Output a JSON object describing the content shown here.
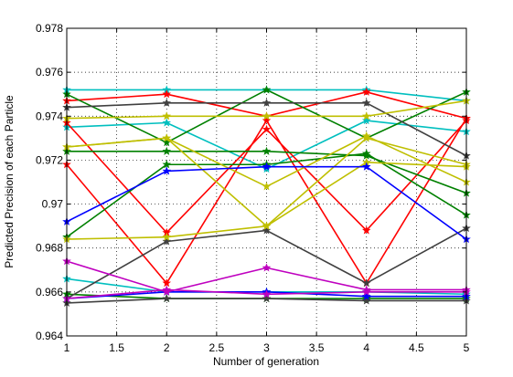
{
  "chart_data": {
    "type": "line",
    "title": "",
    "xlabel": "Number of generation",
    "ylabel": "Predicted Precision of each Particle",
    "xlim": [
      1,
      5
    ],
    "ylim": [
      0.964,
      0.978
    ],
    "xticks": [
      "1",
      "1.5",
      "2",
      "2.5",
      "3",
      "3.5",
      "4",
      "4.5",
      "5"
    ],
    "yticks": [
      "0.964",
      "0.966",
      "0.968",
      "0.97",
      "0.972",
      "0.974",
      "0.976",
      "0.978"
    ],
    "xtick_values": [
      1,
      1.5,
      2,
      2.5,
      3,
      3.5,
      4,
      4.5,
      5
    ],
    "ytick_values": [
      0.964,
      0.966,
      0.968,
      0.97,
      0.972,
      0.974,
      0.976,
      0.978
    ],
    "grid": true,
    "x": [
      1,
      2,
      3,
      4,
      5
    ],
    "series": [
      {
        "color": "#00bfbf",
        "values": [
          0.9752,
          0.9752,
          0.9752,
          0.9752,
          0.9747
        ]
      },
      {
        "color": "#00bfbf",
        "values": [
          0.9735,
          0.9737,
          0.9716,
          0.9738,
          0.9733
        ]
      },
      {
        "color": "#00bfbf",
        "values": [
          0.9666,
          0.966,
          0.966,
          0.966,
          0.9659
        ]
      },
      {
        "color": "#ff0000",
        "values": [
          0.9747,
          0.975,
          0.974,
          0.9751,
          0.9739
        ]
      },
      {
        "color": "#ff0000",
        "values": [
          0.9718,
          0.9664,
          0.9738,
          0.9664,
          0.9739
        ]
      },
      {
        "color": "#ff0000",
        "values": [
          0.9737,
          0.9687,
          0.9734,
          0.9688,
          0.9738
        ]
      },
      {
        "color": "#008000",
        "values": [
          0.975,
          0.9728,
          0.9752,
          0.973,
          0.9751
        ]
      },
      {
        "color": "#008000",
        "values": [
          0.9685,
          0.9718,
          0.9718,
          0.9723,
          0.9695
        ]
      },
      {
        "color": "#008000",
        "values": [
          0.9724,
          0.9724,
          0.9724,
          0.9722,
          0.9705
        ]
      },
      {
        "color": "#008000",
        "values": [
          0.9659,
          0.9657,
          0.9657,
          0.9657,
          0.9657
        ]
      },
      {
        "color": "#404040",
        "values": [
          0.9744,
          0.9746,
          0.9746,
          0.9746,
          0.9722
        ]
      },
      {
        "color": "#404040",
        "values": [
          0.9657,
          0.9683,
          0.9688,
          0.9664,
          0.9689
        ]
      },
      {
        "color": "#404040",
        "values": [
          0.9655,
          0.9657,
          0.9657,
          0.9656,
          0.9656
        ]
      },
      {
        "color": "#bfbf00",
        "values": [
          0.9739,
          0.974,
          0.974,
          0.974,
          0.9747
        ]
      },
      {
        "color": "#bfbf00",
        "values": [
          0.9726,
          0.973,
          0.9708,
          0.9731,
          0.971
        ]
      },
      {
        "color": "#bfbf00",
        "values": [
          0.9684,
          0.9685,
          0.969,
          0.9719,
          0.9717
        ]
      },
      {
        "color": "#bfbf00",
        "values": [
          0.9726,
          0.973,
          0.969,
          0.973,
          0.9718
        ]
      },
      {
        "color": "#0000ff",
        "values": [
          0.9692,
          0.9715,
          0.9717,
          0.9717,
          0.9684
        ]
      },
      {
        "color": "#0000ff",
        "values": [
          0.9657,
          0.966,
          0.966,
          0.9658,
          0.9658
        ]
      },
      {
        "color": "#bf00bf",
        "values": [
          0.9674,
          0.966,
          0.9671,
          0.9661,
          0.9661
        ]
      },
      {
        "color": "#bf00bf",
        "values": [
          0.9657,
          0.9661,
          0.9659,
          0.966,
          0.966
        ]
      }
    ]
  }
}
